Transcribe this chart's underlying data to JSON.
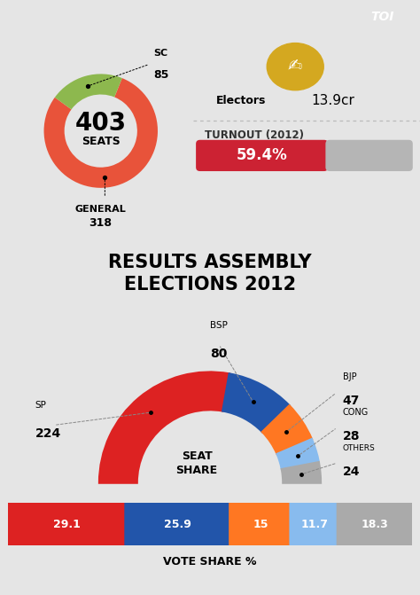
{
  "bg_color": "#e5e5e5",
  "toi_bg": "#cc0000",
  "toi_text": "TOI",
  "title": "RESULTS ASSEMBLY\nELECTIONS 2012",
  "donut": {
    "total": 403,
    "segments": [
      {
        "label": "GENERAL",
        "value": 318,
        "color": "#e8533a"
      },
      {
        "label": "SC",
        "value": 85,
        "color": "#8db84e"
      }
    ],
    "center_text1": "403",
    "center_text2": "SEATS"
  },
  "electors": {
    "value": "13.9cr",
    "label": "Electors",
    "icon_color": "#d4a820"
  },
  "turnout": {
    "label": "TURNOUT (2012)",
    "value": "59.4%",
    "fill_color": "#cc2233",
    "empty_color": "#b5b5b5",
    "fill_pct": 0.594
  },
  "seat_share": [
    {
      "party": "SP",
      "seats": 224,
      "color": "#dd2222"
    },
    {
      "party": "BSP",
      "seats": 80,
      "color": "#2255aa"
    },
    {
      "party": "BJP",
      "seats": 47,
      "color": "#ff7722"
    },
    {
      "party": "CONG",
      "seats": 28,
      "color": "#88bbee"
    },
    {
      "party": "OTHERS",
      "seats": 24,
      "color": "#aaaaaa"
    }
  ],
  "vote_share": [
    {
      "party": "SP",
      "pct": 29.1,
      "color": "#dd2222"
    },
    {
      "party": "BSP",
      "pct": 25.9,
      "color": "#2255aa"
    },
    {
      "party": "BJP",
      "pct": 15.0,
      "color": "#ff7722"
    },
    {
      "party": "CONG",
      "pct": 11.7,
      "color": "#88bbee"
    },
    {
      "party": "OTHERS",
      "pct": 18.3,
      "color": "#aaaaaa"
    }
  ],
  "vote_share_label": "VOTE SHARE %",
  "seat_share_label": "SEAT\nSHARE",
  "divider_color": "#bbbbbb"
}
